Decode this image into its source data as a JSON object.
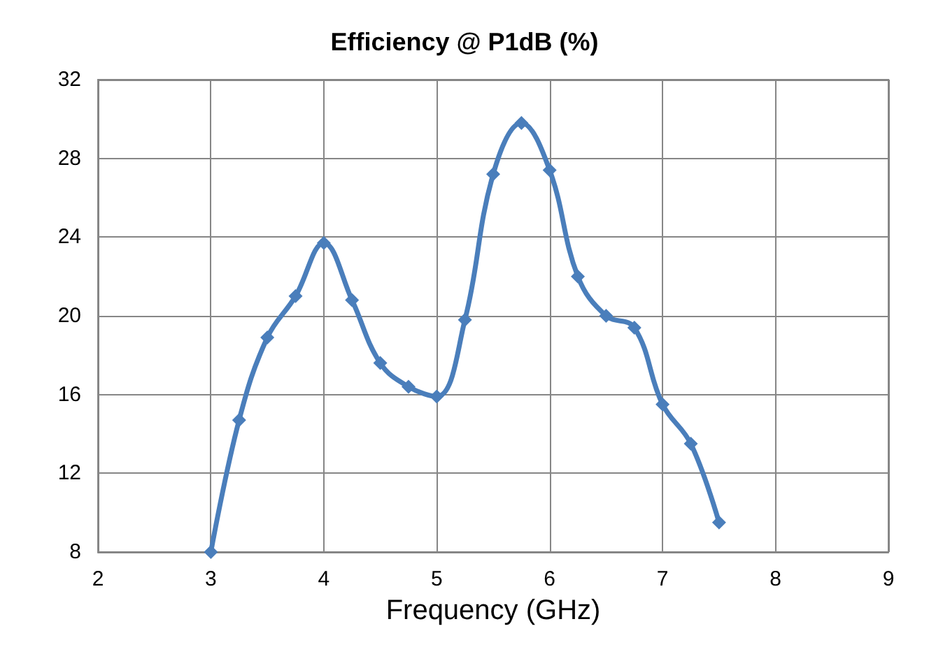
{
  "chart_data": {
    "type": "line",
    "title": "Efficiency @ P1dB (%)",
    "xlabel": "Frequency (GHz)",
    "x": [
      3,
      3.25,
      3.5,
      3.75,
      4,
      4.25,
      4.5,
      4.75,
      5,
      5.25,
      5.5,
      5.75,
      6,
      6.25,
      6.5,
      6.75,
      7,
      7.25,
      7.5
    ],
    "series": [
      {
        "color": "#4a7ebb",
        "values": [
          8.0,
          14.7,
          18.9,
          21.0,
          23.7,
          20.8,
          17.6,
          16.4,
          15.9,
          19.8,
          27.2,
          29.8,
          27.4,
          22.0,
          20.0,
          19.4,
          15.5,
          13.5,
          9.5
        ]
      }
    ],
    "xlim": [
      2,
      9
    ],
    "xticks": [
      2,
      3,
      4,
      5,
      6,
      7,
      8,
      9
    ],
    "ylim": [
      8,
      32
    ],
    "yticks": [
      8,
      12,
      16,
      20,
      24,
      28,
      32
    ],
    "grid": true,
    "marker": "diamond",
    "line_style": "solid"
  }
}
